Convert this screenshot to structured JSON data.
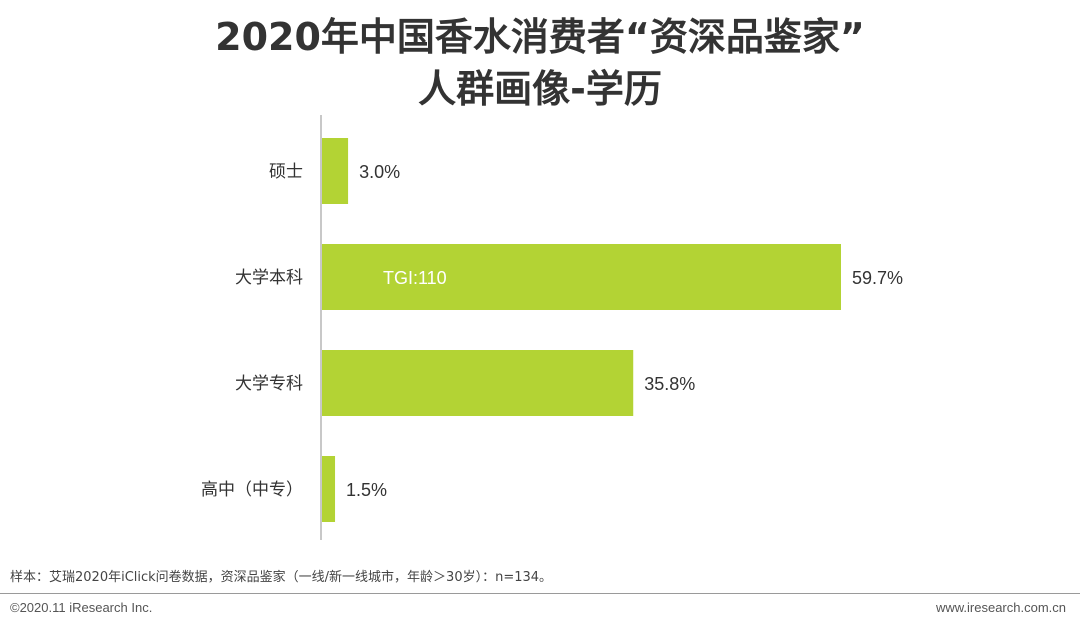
{
  "title_lines": [
    "2020年中国香水消费者“资深品鉴家”",
    "人群画像-学历"
  ],
  "chart_data": {
    "type": "bar",
    "orientation": "horizontal",
    "categories": [
      "硕士",
      "大学本科",
      "大学专科",
      "高中（中专）"
    ],
    "values": [
      3.0,
      59.7,
      35.8,
      1.5
    ],
    "value_labels": [
      "3.0%",
      "59.7%",
      "35.8%",
      "1.5%"
    ],
    "annotations": [
      {
        "category": "大学本科",
        "text": "TGI:110"
      }
    ],
    "unit": "%",
    "xlim": [
      0,
      60
    ],
    "grid": false,
    "legend": "none",
    "bar_color": "#b3d334"
  },
  "footnote": "样本：艾瑞2020年iClick问卷数据，资深品鉴家（一线/新一线城市，年龄＞30岁）：n=134。",
  "footer": {
    "copyright": "©2020.11 iResearch Inc.",
    "website": "www.iresearch.com.cn"
  }
}
